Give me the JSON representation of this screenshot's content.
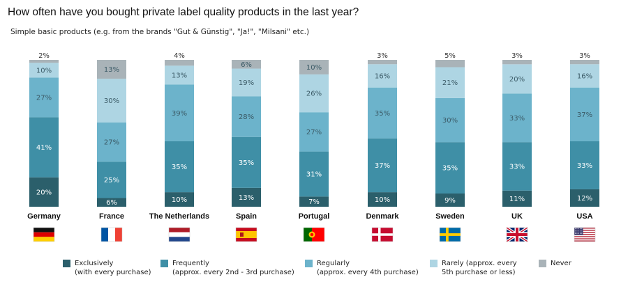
{
  "title": "How often have you bought private label quality products in the last year?",
  "subtitle": "Simple basic products (e.g. from the brands \"Gut & Günstig\", \"Ja!\", \"Milsani\" etc.)",
  "colors": {
    "exclusively": "#2b5f6b",
    "frequently": "#3f8fa6",
    "regularly": "#6cb3cb",
    "rarely": "#aed5e3",
    "never": "#a9b3b8"
  },
  "chart_data": {
    "type": "bar",
    "stacked": true,
    "percent_stacked": true,
    "categories": [
      "Germany",
      "France",
      "The Netherlands",
      "Spain",
      "Portugal",
      "Denmark",
      "Sweden",
      "UK",
      "USA"
    ],
    "flags": [
      "flag-germany",
      "flag-france",
      "flag-netherlands",
      "flag-spain",
      "flag-portugal",
      "flag-denmark",
      "flag-sweden",
      "flag-uk",
      "flag-usa"
    ],
    "series": [
      {
        "key": "exclusively",
        "name": "Exclusively\n(with every purchase)",
        "values": [
          20,
          6,
          10,
          13,
          7,
          10,
          9,
          11,
          12
        ]
      },
      {
        "key": "frequently",
        "name": "Frequently\n(approx. every 2nd - 3rd purchase)",
        "values": [
          41,
          25,
          35,
          35,
          31,
          37,
          35,
          33,
          33
        ]
      },
      {
        "key": "regularly",
        "name": "Regularly\n(approx. every 4th purchase)",
        "values": [
          27,
          27,
          39,
          28,
          27,
          35,
          30,
          33,
          37
        ]
      },
      {
        "key": "rarely",
        "name": "Rarely (approx. every\n5th purchase or less)",
        "values": [
          10,
          30,
          13,
          19,
          26,
          16,
          21,
          20,
          16
        ]
      },
      {
        "key": "never",
        "name": "Never",
        "values": [
          2,
          13,
          4,
          6,
          10,
          3,
          5,
          3,
          3
        ]
      }
    ],
    "value_suffix": "%",
    "legend_position": "bottom"
  }
}
